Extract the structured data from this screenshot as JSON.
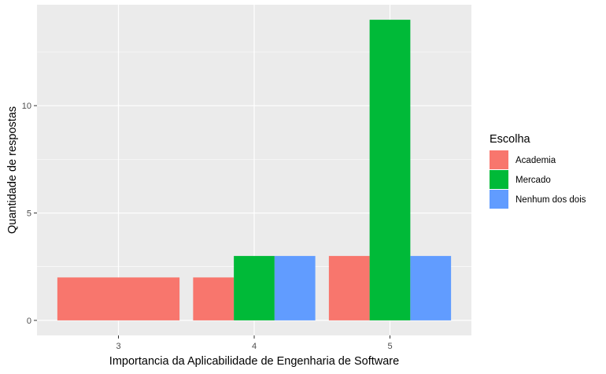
{
  "chart_data": {
    "type": "bar",
    "xlabel": "Importancia da Aplicabilidade de Engenharia de Software",
    "ylabel": "Quantidade de respostas",
    "categories": [
      "3",
      "4",
      "5"
    ],
    "y_ticks": [
      0,
      5,
      10
    ],
    "y_tick_labels": [
      "0",
      "5",
      "10"
    ],
    "ylim": [
      -0.7,
      14.7
    ],
    "grid": true,
    "legend": {
      "title": "Escolha",
      "position": "right",
      "entries": [
        "Academia",
        "Mercado",
        "Nenhum dos dois"
      ]
    },
    "series": [
      {
        "name": "Academia",
        "color": "#F8766D",
        "values": [
          2,
          2,
          3
        ]
      },
      {
        "name": "Mercado",
        "color": "#00BA38",
        "values": [
          null,
          3,
          14
        ]
      },
      {
        "name": "Nenhum dos dois",
        "color": "#619CFF",
        "values": [
          null,
          3,
          3
        ]
      }
    ],
    "panel_background": "#EBEBEB",
    "grid_color": "#FFFFFF"
  }
}
